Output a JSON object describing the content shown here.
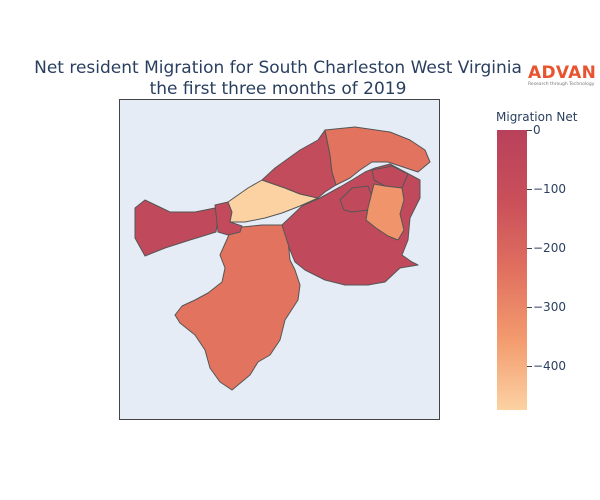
{
  "title": {
    "line1": "Net resident Migration for South Charleston West Virginia",
    "line2": "the first three months of 2019"
  },
  "logo": {
    "word": "ADVAN",
    "tagline": "Research through Technology"
  },
  "colorbar": {
    "title": "Migration Net",
    "ticks": [
      "0",
      "−100",
      "−200",
      "−300",
      "−400"
    ],
    "colorscale": [
      "#b8415b",
      "#c94f5a",
      "#e0705f",
      "#f39b6e",
      "#fcd2a2"
    ]
  },
  "map": {
    "background": "#e5ecf6",
    "regions": [
      {
        "name": "northwest-tract",
        "value": -80,
        "color": "#c04a5c"
      },
      {
        "name": "west-small-tract",
        "value": -70,
        "color": "#c24a5c"
      },
      {
        "name": "pale-center-tract",
        "value": -470,
        "color": "#fcd2a2"
      },
      {
        "name": "north-tract",
        "value": -90,
        "color": "#c24b5c"
      },
      {
        "name": "northeast-tract",
        "value": -220,
        "color": "#e2735e"
      },
      {
        "name": "east-large-tract",
        "value": -80,
        "color": "#c04a5c"
      },
      {
        "name": "east-inner-tract",
        "value": -80,
        "color": "#c04a5c"
      },
      {
        "name": "east-light-tract",
        "value": -310,
        "color": "#f0956b"
      },
      {
        "name": "south-tract",
        "value": -220,
        "color": "#e2735e"
      }
    ]
  }
}
